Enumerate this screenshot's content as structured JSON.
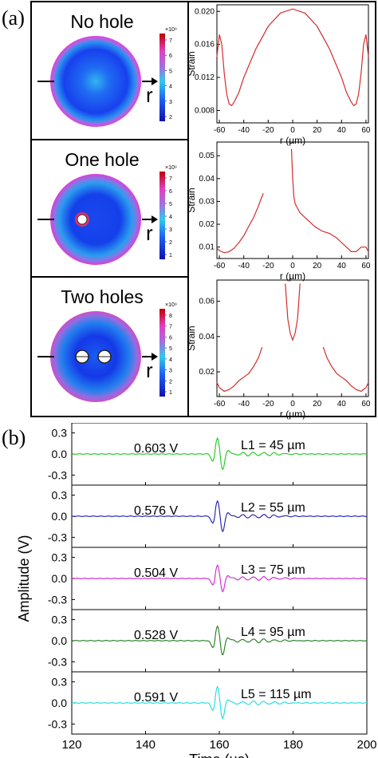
{
  "panel_a_label": "(a)",
  "panel_b_label": "(b)",
  "sims": [
    {
      "title": "No hole",
      "arrow_label": "r",
      "cb_exp": "×10⁹",
      "cb_ticks": [
        "7",
        "6",
        "5",
        "4",
        "3",
        "2"
      ]
    },
    {
      "title": "One hole",
      "arrow_label": "r",
      "cb_exp": "×10⁹",
      "cb_ticks": [
        "7",
        "6",
        "5",
        "4",
        "3",
        "2",
        "1"
      ]
    },
    {
      "title": "Two holes",
      "arrow_label": "r",
      "cb_exp": "×10⁹",
      "cb_ticks": [
        "8",
        "7",
        "6",
        "5",
        "4",
        "3",
        "2",
        "1"
      ]
    }
  ],
  "colors": {
    "curve_a": "#d62c2c",
    "green": "#1ec61e",
    "blue": "#1a1ab0",
    "magenta": "#d21ed2",
    "darkgreen": "#1f7a1f",
    "cyan": "#19dede"
  },
  "chart_data": [
    {
      "type": "line",
      "xlabel": "r (µm)",
      "ylabel": "Strain",
      "xlim": [
        -62,
        62
      ],
      "ylim": [
        0.0065,
        0.0208
      ],
      "xticks": [
        -60,
        -40,
        -20,
        0,
        20,
        40,
        60
      ],
      "xtick_labels": [
        "-60",
        "-40",
        "-20",
        "0",
        "20",
        "40",
        "60"
      ],
      "yticks": [
        0.008,
        0.012,
        0.016,
        0.02
      ],
      "ytick_labels": [
        "0.008",
        "0.012",
        "0.016",
        "0.020"
      ],
      "series": [
        {
          "x": [
            -62,
            -60,
            -58,
            -56,
            -54,
            -52,
            -50,
            -48,
            -44,
            -40,
            -30,
            -20,
            -10,
            0,
            10,
            20,
            30,
            40,
            44,
            48,
            50,
            52,
            54,
            56,
            58,
            60,
            62
          ],
          "y": [
            0.0145,
            0.0172,
            0.016,
            0.0125,
            0.01,
            0.0088,
            0.0086,
            0.009,
            0.0102,
            0.012,
            0.0155,
            0.0182,
            0.0198,
            0.0203,
            0.0198,
            0.0182,
            0.0155,
            0.012,
            0.0102,
            0.009,
            0.0086,
            0.0088,
            0.01,
            0.0125,
            0.016,
            0.0172,
            0.0145
          ]
        }
      ]
    },
    {
      "type": "line",
      "xlabel": "r (µm)",
      "ylabel": "Strain",
      "xlim": [
        -62,
        62
      ],
      "ylim": [
        0.005,
        0.056
      ],
      "xticks": [
        -60,
        -40,
        -20,
        0,
        20,
        40,
        60
      ],
      "xtick_labels": [
        "-60",
        "-40",
        "-20",
        "0",
        "20",
        "40",
        "60"
      ],
      "yticks": [
        0.01,
        0.02,
        0.03,
        0.04,
        0.05
      ],
      "ytick_labels": [
        "0.01",
        "0.02",
        "0.03",
        "0.04",
        "0.05"
      ],
      "series": [
        {
          "x": [
            -62,
            -60,
            -56,
            -52,
            -48,
            -44,
            -40,
            -36,
            -32,
            -28,
            -26,
            -24
          ],
          "y": [
            0.0095,
            0.0085,
            0.0075,
            0.008,
            0.0095,
            0.012,
            0.015,
            0.019,
            0.023,
            0.028,
            0.031,
            0.0335
          ]
        },
        {
          "x": [
            -1,
            0,
            1,
            2,
            4,
            6,
            8,
            10,
            14,
            18,
            24,
            30,
            36,
            40,
            44,
            48,
            52,
            56,
            60,
            62
          ],
          "y": [
            0.053,
            0.04,
            0.032,
            0.029,
            0.027,
            0.025,
            0.024,
            0.023,
            0.021,
            0.019,
            0.017,
            0.016,
            0.014,
            0.012,
            0.01,
            0.008,
            0.008,
            0.01,
            0.01,
            0.008
          ]
        }
      ]
    },
    {
      "type": "line",
      "xlabel": "r (µm)",
      "ylabel": "Strain",
      "xlim": [
        -62,
        62
      ],
      "ylim": [
        0.006,
        0.072
      ],
      "xticks": [
        -60,
        -40,
        -20,
        0,
        20,
        40,
        60
      ],
      "xtick_labels": [
        "-60",
        "-40",
        "-20",
        "0",
        "20",
        "40",
        "60"
      ],
      "yticks": [
        0.02,
        0.04,
        0.06
      ],
      "ytick_labels": [
        "0.02",
        "0.04",
        "0.06"
      ],
      "series": [
        {
          "x": [
            -62,
            -60,
            -56,
            -52,
            -48,
            -44,
            -40,
            -36,
            -32,
            -28,
            -25
          ],
          "y": [
            0.014,
            0.011,
            0.009,
            0.01,
            0.012,
            0.015,
            0.017,
            0.019,
            0.023,
            0.028,
            0.034
          ]
        },
        {
          "x": [
            -6,
            -5,
            -4,
            -2,
            0,
            2,
            4,
            5,
            6
          ],
          "y": [
            0.07,
            0.06,
            0.05,
            0.042,
            0.038,
            0.042,
            0.05,
            0.06,
            0.07
          ]
        },
        {
          "x": [
            25,
            28,
            32,
            36,
            40,
            44,
            48,
            52,
            56,
            60,
            62
          ],
          "y": [
            0.034,
            0.028,
            0.023,
            0.019,
            0.017,
            0.015,
            0.012,
            0.01,
            0.009,
            0.011,
            0.014
          ]
        }
      ]
    },
    {
      "type": "line",
      "xlabel": "Time (µs)",
      "ylabel": "Amplitude (V)",
      "xlim": [
        120,
        200
      ],
      "ylim_each": [
        -0.42,
        0.42
      ],
      "xticks": [
        120,
        140,
        160,
        180,
        200
      ],
      "xtick_labels": [
        "120",
        "140",
        "160",
        "180",
        "200"
      ],
      "yticks": [
        -0.3,
        0.0,
        0.3
      ],
      "ytick_labels": [
        "-0.3",
        "0.0",
        "0.3"
      ],
      "series": [
        {
          "name": "L1 = 45 µm",
          "amplitude_label": "0.603 V",
          "peak": 0.29,
          "color_key": "green"
        },
        {
          "name": "L2 = 55 µm",
          "amplitude_label": "0.576 V",
          "peak": 0.28,
          "color_key": "blue"
        },
        {
          "name": "L3 = 75 µm",
          "amplitude_label": "0.504 V",
          "peak": 0.24,
          "color_key": "magenta"
        },
        {
          "name": "L4 = 95 µm",
          "amplitude_label": "0.528 V",
          "peak": 0.26,
          "color_key": "darkgreen"
        },
        {
          "name": "L5 = 115 µm",
          "amplitude_label": "0.591 V",
          "peak": 0.29,
          "color_key": "cyan"
        }
      ]
    }
  ]
}
